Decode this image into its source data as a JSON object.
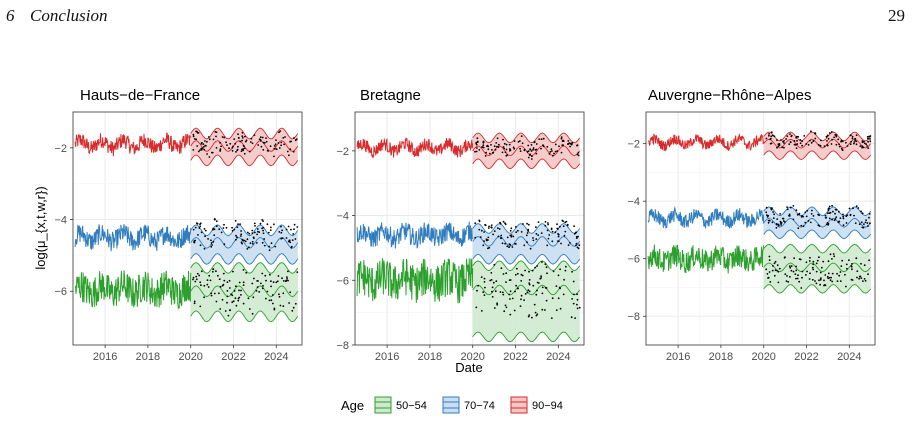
{
  "header": {
    "section_number": "6",
    "section_title": "Conclusion",
    "page_number": "29"
  },
  "colors": {
    "age_50_54": "#2ca02c",
    "age_50_54_fill": "#cfe9cf",
    "age_70_74": "#2f7dbf",
    "age_70_74_fill": "#c9def1",
    "age_90_94": "#d92b2b",
    "age_90_94_fill": "#f4c6c6",
    "observed_points": "#000000",
    "grid": "#ebebeb",
    "panel_border": "#333333"
  },
  "chart_data": {
    "type": "line",
    "ylabel": "log(μ_{x,t,w,r})",
    "xlabel": "Date",
    "legend": {
      "title": "Age",
      "placement": "bottom",
      "entries": [
        "50−54",
        "70−74",
        "90−94"
      ]
    },
    "grid": true,
    "forecast_start": 2020,
    "xlim": [
      2014.5,
      2025.2
    ],
    "x_ticks": [
      2016,
      2018,
      2020,
      2022,
      2024
    ],
    "x_tick_labels": [
      "2016",
      "2018",
      "2020",
      "2022",
      "2024"
    ],
    "panels": [
      {
        "title": "Hauts−de−France",
        "ylim": [
          -7.5,
          -1.0
        ],
        "y_ticks": [
          -6,
          -4,
          -2
        ],
        "y_tick_labels": [
          "−6",
          "−4",
          "−2"
        ],
        "series": [
          {
            "name": "90−94",
            "fitted_level": -1.9,
            "noise": 0.22,
            "fc_center": -1.95,
            "fc_low": -2.35,
            "fc_high": -1.6,
            "obs_level": -1.9
          },
          {
            "name": "70−74",
            "fitted_level": -4.5,
            "noise": 0.28,
            "fc_center": -4.65,
            "fc_low": -5.1,
            "fc_high": -4.3,
            "obs_level": -4.4
          },
          {
            "name": "50−54",
            "fitted_level": -5.95,
            "noise": 0.45,
            "fc_center": -6.0,
            "fc_low": -6.7,
            "fc_high": -5.35,
            "obs_level": -6.0
          }
        ]
      },
      {
        "title": "Bretagne",
        "ylim": [
          -8.0,
          -0.8
        ],
        "y_ticks": [
          -8,
          -6,
          -4,
          -2
        ],
        "y_tick_labels": [
          "−8",
          "−6",
          "−4",
          "−2"
        ],
        "series": [
          {
            "name": "90−94",
            "fitted_level": -1.9,
            "noise": 0.2,
            "fc_center": -2.0,
            "fc_low": -2.4,
            "fc_high": -1.6,
            "obs_level": -1.9
          },
          {
            "name": "70−74",
            "fitted_level": -4.6,
            "noise": 0.3,
            "fc_center": -4.8,
            "fc_low": -5.35,
            "fc_high": -4.4,
            "obs_level": -4.6
          },
          {
            "name": "50−54",
            "fitted_level": -6.0,
            "noise": 0.6,
            "fc_center": -6.3,
            "fc_low": -7.75,
            "fc_high": -5.55,
            "obs_level": -6.3
          }
        ]
      },
      {
        "title": "Auvergne−Rhône−Alpes",
        "ylim": [
          -9.0,
          -0.9
        ],
        "y_ticks": [
          -8,
          -6,
          -4,
          -2
        ],
        "y_tick_labels": [
          "−8",
          "−6",
          "−4",
          "−2"
        ],
        "series": [
          {
            "name": "90−94",
            "fitted_level": -1.95,
            "noise": 0.18,
            "fc_center": -2.0,
            "fc_low": -2.4,
            "fc_high": -1.75,
            "obs_level": -1.9
          },
          {
            "name": "70−74",
            "fitted_level": -4.6,
            "noise": 0.25,
            "fc_center": -4.75,
            "fc_low": -5.15,
            "fc_high": -4.35,
            "obs_level": -4.55
          },
          {
            "name": "50−54",
            "fitted_level": -6.0,
            "noise": 0.4,
            "fc_center": -6.3,
            "fc_low": -7.05,
            "fc_high": -5.65,
            "obs_level": -6.4
          }
        ]
      }
    ]
  }
}
